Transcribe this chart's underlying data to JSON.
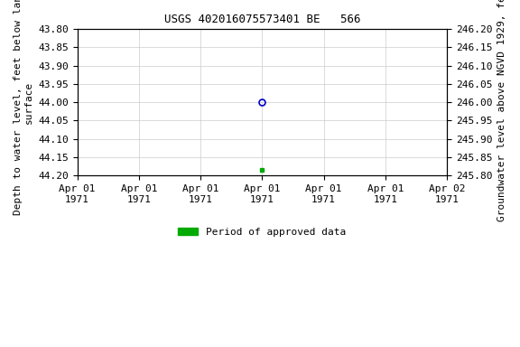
{
  "title": "USGS 402016075573401 BE   566",
  "ylabel_left": "Depth to water level, feet below land\nsurface",
  "ylabel_right": "Groundwater level above NGVD 1929, feet",
  "ylim_left_top": 43.8,
  "ylim_left_bottom": 44.2,
  "ylim_right_top": 246.2,
  "ylim_right_bottom": 245.8,
  "xlim": [
    0,
    6
  ],
  "xtick_positions": [
    0,
    1,
    2,
    3,
    4,
    5,
    6
  ],
  "xtick_labels": [
    "Apr 01\n1971",
    "Apr 01\n1971",
    "Apr 01\n1971",
    "Apr 01\n1971",
    "Apr 01\n1971",
    "Apr 01\n1971",
    "Apr 02\n1971"
  ],
  "yticks_left": [
    43.8,
    43.85,
    43.9,
    43.95,
    44.0,
    44.05,
    44.1,
    44.15,
    44.2
  ],
  "yticks_right": [
    246.2,
    246.15,
    246.1,
    246.05,
    246.0,
    245.95,
    245.9,
    245.85,
    245.8
  ],
  "data_point_x": 3,
  "data_point_y_open": 44.0,
  "data_point_open_color": "#0000cc",
  "data_point_y_filled": 44.185,
  "data_point_filled_color": "#00aa00",
  "legend_label": "Period of approved data",
  "legend_color": "#00aa00",
  "bg_color": "#ffffff",
  "grid_color": "#cccccc",
  "tick_fontsize": 8,
  "label_fontsize": 8,
  "title_fontsize": 9
}
